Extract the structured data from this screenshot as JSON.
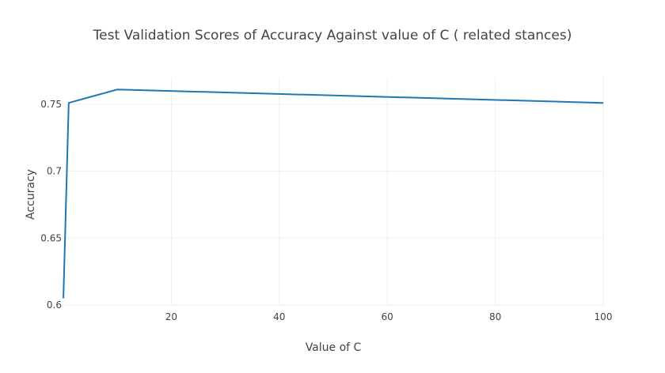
{
  "chart_data": {
    "type": "line",
    "title": "Test Validation Scores of Accuracy Against value of C  ( related stances)",
    "xlabel": "Value of C",
    "ylabel": "Accuracy",
    "xlim": [
      0,
      100
    ],
    "ylim": [
      0.6,
      0.77
    ],
    "x_ticks": [
      20,
      40,
      60,
      80,
      100
    ],
    "y_ticks": [
      0.6,
      0.65,
      0.7,
      0.75
    ],
    "x_tick_labels": [
      "20",
      "40",
      "60",
      "80",
      "100"
    ],
    "y_tick_labels": [
      "0.6",
      "0.65",
      "0.7",
      "0.75"
    ],
    "grid": true,
    "series": [
      {
        "color": "#1f77b4",
        "x": [
          0.01,
          1,
          10,
          100
        ],
        "y": [
          0.605,
          0.751,
          0.761,
          0.751
        ]
      }
    ]
  }
}
